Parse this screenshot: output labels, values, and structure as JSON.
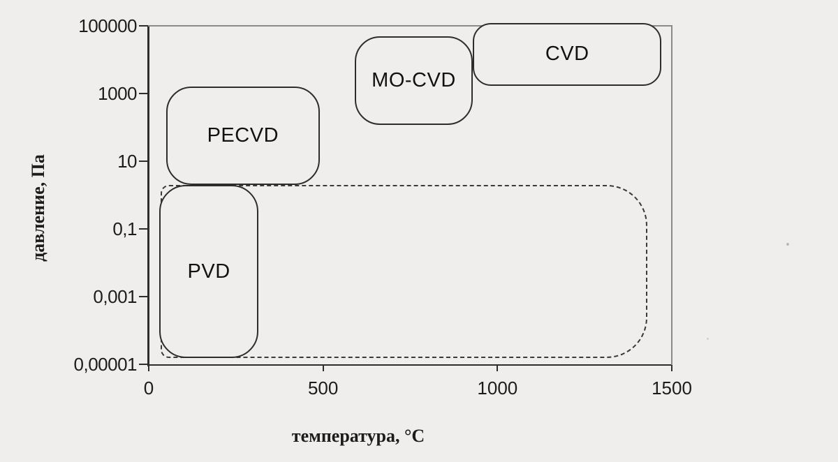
{
  "figure": {
    "background": "#efeeec",
    "axis_color": "#2d2d2d",
    "frame_color": "#8a8a88",
    "text_color": "#1c1c1c"
  },
  "chart_data": {
    "type": "area",
    "title": "",
    "xlabel": "температура, °C",
    "ylabel": "давление, Па",
    "x_axis": {
      "min": 0,
      "max": 1500,
      "scale": "linear",
      "ticks": [
        {
          "value": 0,
          "label": "0"
        },
        {
          "value": 500,
          "label": "500"
        },
        {
          "value": 1000,
          "label": "1000"
        },
        {
          "value": 1500,
          "label": "1500"
        }
      ]
    },
    "y_axis": {
      "min": 1e-05,
      "max": 100000,
      "scale": "log",
      "ticks": [
        {
          "value": 100000,
          "label": "100000"
        },
        {
          "value": 1000,
          "label": "1000"
        },
        {
          "value": 10,
          "label": "10"
        },
        {
          "value": 0.1,
          "label": "0,1"
        },
        {
          "value": 0.001,
          "label": "0,001"
        },
        {
          "value": 1e-05,
          "label": "0,00001"
        }
      ]
    },
    "regions": [
      {
        "name": "low-pressure-envelope",
        "label": "",
        "style": "dashed",
        "t_range": [
          35,
          1430
        ],
        "p_range": [
          1.5e-05,
          2
        ]
      },
      {
        "name": "pecvd",
        "label": "PECVD",
        "style": "solid",
        "t_range": [
          50,
          490
        ],
        "p_range": [
          2,
          1600
        ]
      },
      {
        "name": "pvd",
        "label": "PVD",
        "style": "solid",
        "t_range": [
          30,
          315
        ],
        "p_range": [
          1.5e-05,
          2
        ]
      },
      {
        "name": "mo-cvd",
        "label": "MO-CVD",
        "style": "solid",
        "t_range": [
          590,
          930
        ],
        "p_range": [
          120,
          50000
        ]
      },
      {
        "name": "cvd",
        "label": "CVD",
        "style": "solid",
        "t_range": [
          930,
          1470
        ],
        "p_range": [
          1700,
          120000
        ]
      }
    ],
    "legend": null,
    "grid": false
  }
}
